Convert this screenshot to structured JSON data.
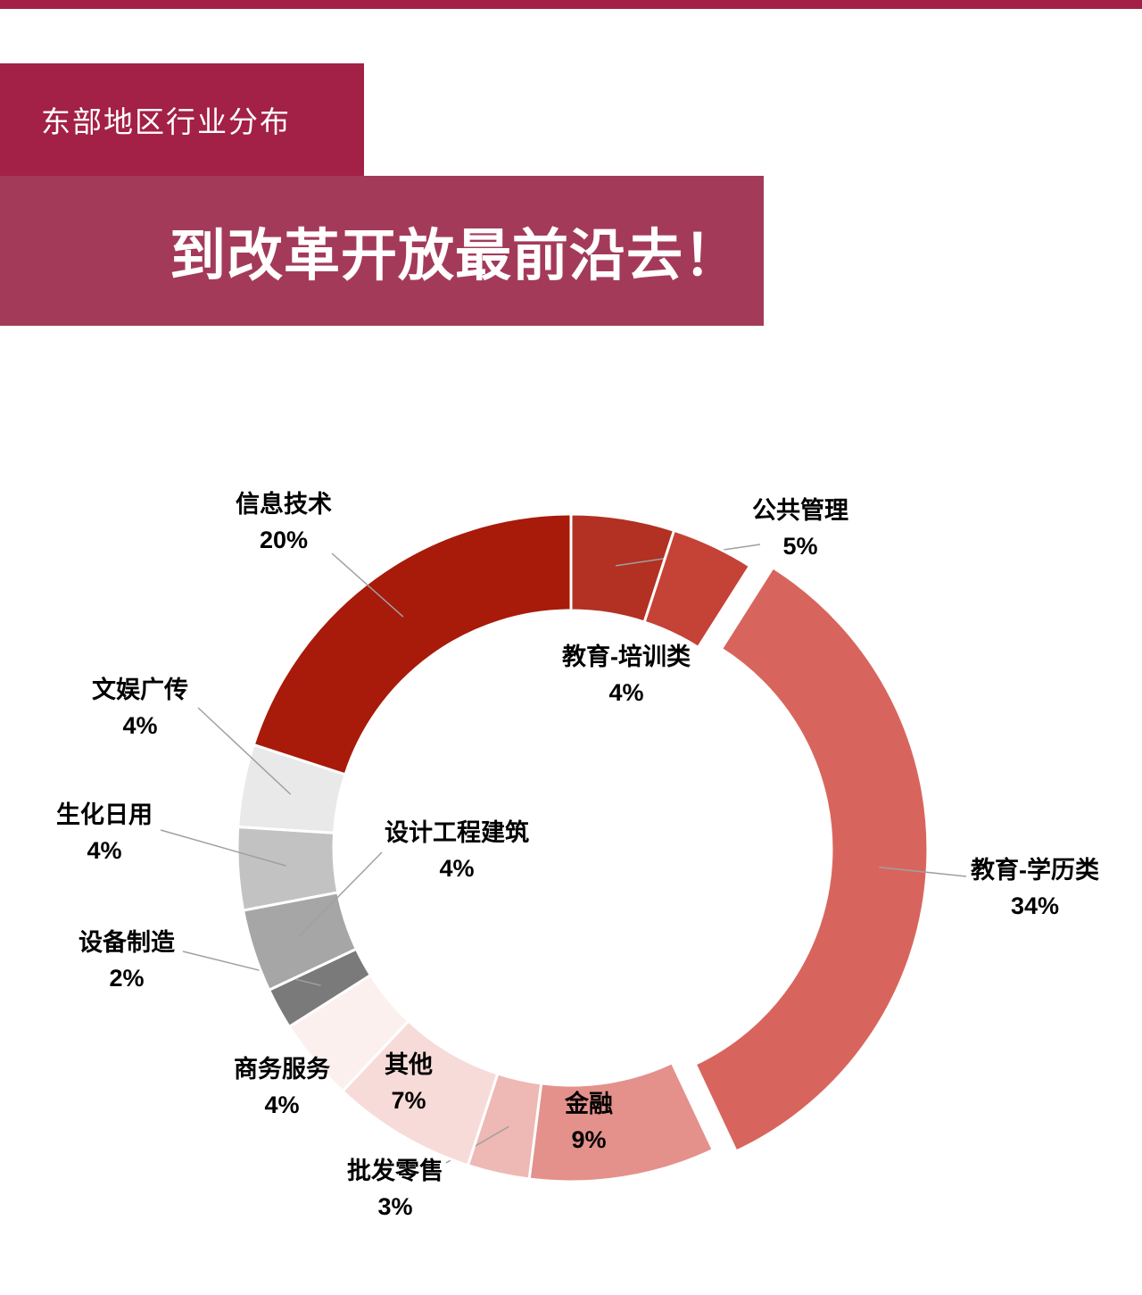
{
  "page": {
    "background": "#ffffff",
    "top_strip_color": "#a32047"
  },
  "header": {
    "tab_label": "东部地区行业分布",
    "tab_color": "#a32047",
    "banner_title": "到改革开放最前沿去！",
    "banner_color": "#a43a5a"
  },
  "chart_data": {
    "type": "pie",
    "variant": "donut",
    "title": "东部地区行业分布",
    "start_angle_deg": 0,
    "direction": "clockwise",
    "exploded_slice": "教育-学历类",
    "slices": [
      {
        "name": "公共管理",
        "value": 5,
        "label": "5%",
        "color": "#b23122"
      },
      {
        "name": "教育-培训类",
        "value": 4,
        "label": "4%",
        "color": "#c54236"
      },
      {
        "name": "教育-学历类",
        "value": 34,
        "label": "34%",
        "color": "#d8655d",
        "exploded": true
      },
      {
        "name": "金融",
        "value": 9,
        "label": "9%",
        "color": "#e4918b"
      },
      {
        "name": "批发零售",
        "value": 3,
        "label": "3%",
        "color": "#eeb8b4"
      },
      {
        "name": "其他",
        "value": 7,
        "label": "7%",
        "color": "#f7dbd9"
      },
      {
        "name": "商务服务",
        "value": 4,
        "label": "4%",
        "color": "#fcf0ef"
      },
      {
        "name": "设备制造",
        "value": 2,
        "label": "2%",
        "color": "#7a7a7a"
      },
      {
        "name": "设计工程建筑",
        "value": 4,
        "label": "4%",
        "color": "#a6a6a6"
      },
      {
        "name": "生化日用",
        "value": 4,
        "label": "4%",
        "color": "#c2c2c2"
      },
      {
        "name": "文娱广传",
        "value": 4,
        "label": "4%",
        "color": "#e9e9e9"
      },
      {
        "name": "信息技术",
        "value": 20,
        "label": "20%",
        "color": "#a81a0a"
      }
    ]
  }
}
